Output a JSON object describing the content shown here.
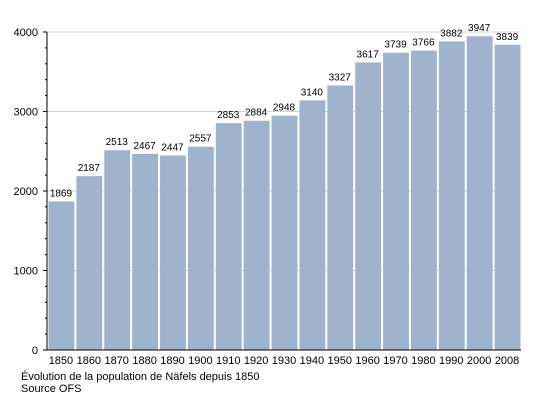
{
  "chart_data": {
    "type": "bar",
    "categories": [
      "1850",
      "1860",
      "1870",
      "1880",
      "1890",
      "1900",
      "1910",
      "1920",
      "1930",
      "1940",
      "1950",
      "1960",
      "1970",
      "1980",
      "1990",
      "2000",
      "2008"
    ],
    "values": [
      1869,
      2187,
      2513,
      2467,
      2447,
      2557,
      2853,
      2884,
      2948,
      3140,
      3327,
      3617,
      3739,
      3766,
      3882,
      3947,
      3839
    ],
    "title": "",
    "xlabel": "",
    "ylabel": "",
    "ylim": [
      0,
      4000
    ],
    "y_ticks": [
      "0",
      "1000",
      "2000",
      "3000",
      "4000"
    ],
    "grid": true,
    "bar_color": "#9fb4cc",
    "data_labels": true
  },
  "caption": {
    "line1": "Évolution de la population de Näfels depuis 1850",
    "line2": "Source OFS"
  }
}
